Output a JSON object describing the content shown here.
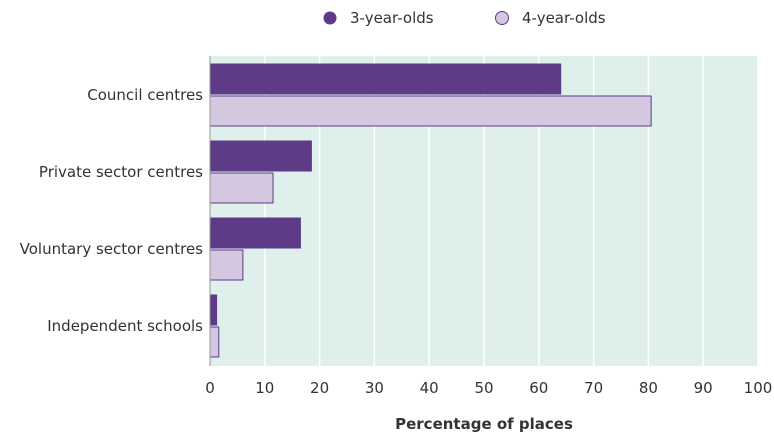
{
  "chart_data": {
    "type": "bar",
    "orientation": "horizontal",
    "categories": [
      "Council centres",
      "Private sector centres",
      "Voluntary sector centres",
      "Independent schools"
    ],
    "series": [
      {
        "name": "3-year-olds",
        "values": [
          64,
          18.5,
          16.5,
          1.2
        ],
        "color": "#5e3b87"
      },
      {
        "name": "4-year-olds",
        "values": [
          80.5,
          11.5,
          6,
          1.6
        ],
        "color": "#d3c8df"
      }
    ],
    "xlabel": "Percentage of places",
    "ylabel": "",
    "xlim": [
      0,
      100
    ],
    "xticks": [
      0,
      10,
      20,
      30,
      40,
      50,
      60,
      70,
      80,
      90,
      100
    ],
    "grid": true,
    "legend_position": "top",
    "plot_background": "#deefec",
    "grid_color": "#ffffff"
  }
}
